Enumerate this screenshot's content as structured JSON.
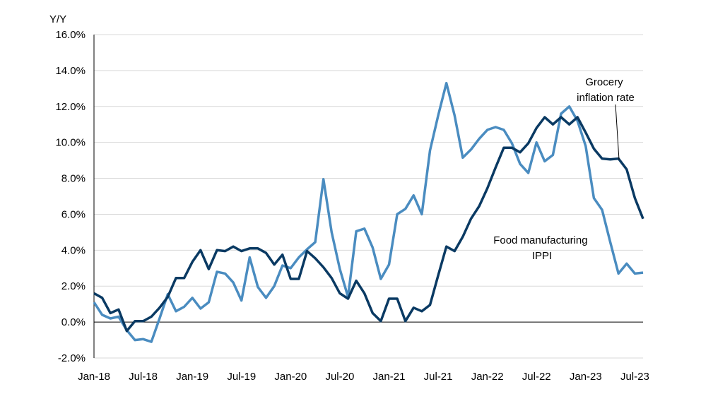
{
  "chart_data": {
    "type": "line",
    "title": "",
    "ylabel": "Y/Y",
    "xlabel": "",
    "ylim": [
      -2,
      16
    ],
    "grid": true,
    "y_ticks": [
      "-2.0%",
      "0.0%",
      "2.0%",
      "4.0%",
      "6.0%",
      "8.0%",
      "10.0%",
      "12.0%",
      "14.0%",
      "16.0%"
    ],
    "y_tick_values": [
      -2,
      0,
      2,
      4,
      6,
      8,
      10,
      12,
      14,
      16
    ],
    "x_ticks": [
      "Jan-18",
      "Jul-18",
      "Jan-19",
      "Jul-19",
      "Jan-20",
      "Jul-20",
      "Jan-21",
      "Jul-21",
      "Jan-22",
      "Jul-22",
      "Jan-23",
      "Jul-23"
    ],
    "x_start": "Jan-18",
    "x_end": "Sep-23",
    "series": [
      {
        "name": "Grocery inflation rate",
        "color": "#0a3a63",
        "values": [
          1.6,
          1.35,
          0.5,
          0.7,
          -0.5,
          0.05,
          0.05,
          0.3,
          0.8,
          1.4,
          2.45,
          2.45,
          3.35,
          4.0,
          2.95,
          4.0,
          3.95,
          4.2,
          3.95,
          4.1,
          4.1,
          3.85,
          3.2,
          3.75,
          2.4,
          2.4,
          3.95,
          3.55,
          3.05,
          2.45,
          1.6,
          1.3,
          2.3,
          1.6,
          0.5,
          0.05,
          1.3,
          1.3,
          0.05,
          0.8,
          0.6,
          0.95,
          2.6,
          4.2,
          3.95,
          4.75,
          5.75,
          6.45,
          7.45,
          8.6,
          9.7,
          9.7,
          9.45,
          9.95,
          10.8,
          11.4,
          11.0,
          11.4,
          11.0,
          11.4,
          10.55,
          9.65,
          9.1,
          9.05,
          9.1,
          8.5,
          6.9,
          5.75
        ]
      },
      {
        "name": "Food manufacturing IPPI",
        "color": "#4a8cc0",
        "values": [
          1.1,
          0.4,
          0.2,
          0.3,
          -0.45,
          -1.0,
          -0.95,
          -1.1,
          0.2,
          1.55,
          0.6,
          0.85,
          1.35,
          0.75,
          1.1,
          2.8,
          2.7,
          2.2,
          1.2,
          3.6,
          1.95,
          1.35,
          2.0,
          3.15,
          3.0,
          3.6,
          4.05,
          4.45,
          7.95,
          5.0,
          2.95,
          1.4,
          5.05,
          5.2,
          4.15,
          2.4,
          3.2,
          6.0,
          6.3,
          7.05,
          6.0,
          9.55,
          11.5,
          13.3,
          11.5,
          9.15,
          9.6,
          10.2,
          10.7,
          10.85,
          10.7,
          9.95,
          8.8,
          8.3,
          10.0,
          8.95,
          9.3,
          11.6,
          12.0,
          11.2,
          9.8,
          6.9,
          6.25,
          4.45,
          2.7,
          3.25,
          2.7,
          2.75
        ]
      }
    ],
    "annotations": {
      "grocery": [
        "Grocery",
        "inflation rate"
      ],
      "ippi": [
        "Food manufacturing",
        "IPPI"
      ]
    }
  }
}
